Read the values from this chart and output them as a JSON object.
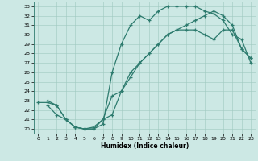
{
  "xlabel": "Humidex (Indice chaleur)",
  "xlim": [
    -0.5,
    23.5
  ],
  "ylim": [
    19.5,
    33.5
  ],
  "xticks": [
    0,
    1,
    2,
    3,
    4,
    5,
    6,
    7,
    8,
    9,
    10,
    11,
    12,
    13,
    14,
    15,
    16,
    17,
    18,
    19,
    20,
    21,
    22,
    23
  ],
  "yticks": [
    20,
    21,
    22,
    23,
    24,
    25,
    26,
    27,
    28,
    29,
    30,
    31,
    32,
    33
  ],
  "bg_color": "#cce8e4",
  "line_color": "#2d7b6e",
  "line1_x": [
    1,
    2,
    3,
    4,
    5,
    6,
    7,
    8,
    9,
    10,
    11,
    12,
    13,
    14,
    15,
    16,
    17,
    18,
    19,
    20,
    21,
    22,
    23
  ],
  "line1_y": [
    23,
    22.5,
    21,
    20.2,
    20.0,
    20.0,
    20.5,
    26.0,
    29.0,
    31.0,
    32.0,
    31.5,
    32.5,
    33.0,
    33.0,
    33.0,
    33.0,
    32.5,
    32.2,
    31.5,
    30.0,
    29.5,
    27.0
  ],
  "line2_x": [
    0,
    1,
    2,
    3,
    4,
    5,
    6,
    7,
    8,
    9,
    10,
    11,
    12,
    13,
    14,
    15,
    16,
    17,
    18,
    19,
    20,
    21,
    22,
    23
  ],
  "line2_y": [
    22.8,
    22.8,
    22.5,
    21.0,
    20.2,
    20.0,
    20.0,
    21.0,
    21.5,
    24.0,
    26.0,
    27.0,
    28.0,
    29.0,
    30.0,
    30.5,
    31.0,
    31.5,
    32.0,
    32.5,
    32.0,
    31.0,
    28.5,
    27.5
  ],
  "line3_x": [
    1,
    2,
    3,
    4,
    5,
    6,
    7,
    8,
    9,
    10,
    11,
    12,
    13,
    14,
    15,
    16,
    17,
    18,
    19,
    20,
    21,
    22,
    23
  ],
  "line3_y": [
    22.5,
    21.5,
    21.0,
    20.2,
    20.0,
    20.2,
    21.0,
    23.5,
    24.0,
    25.5,
    27.0,
    28.0,
    29.0,
    30.0,
    30.5,
    30.5,
    30.5,
    30.0,
    29.5,
    30.5,
    30.5,
    28.5,
    27.5
  ],
  "marker": "+"
}
